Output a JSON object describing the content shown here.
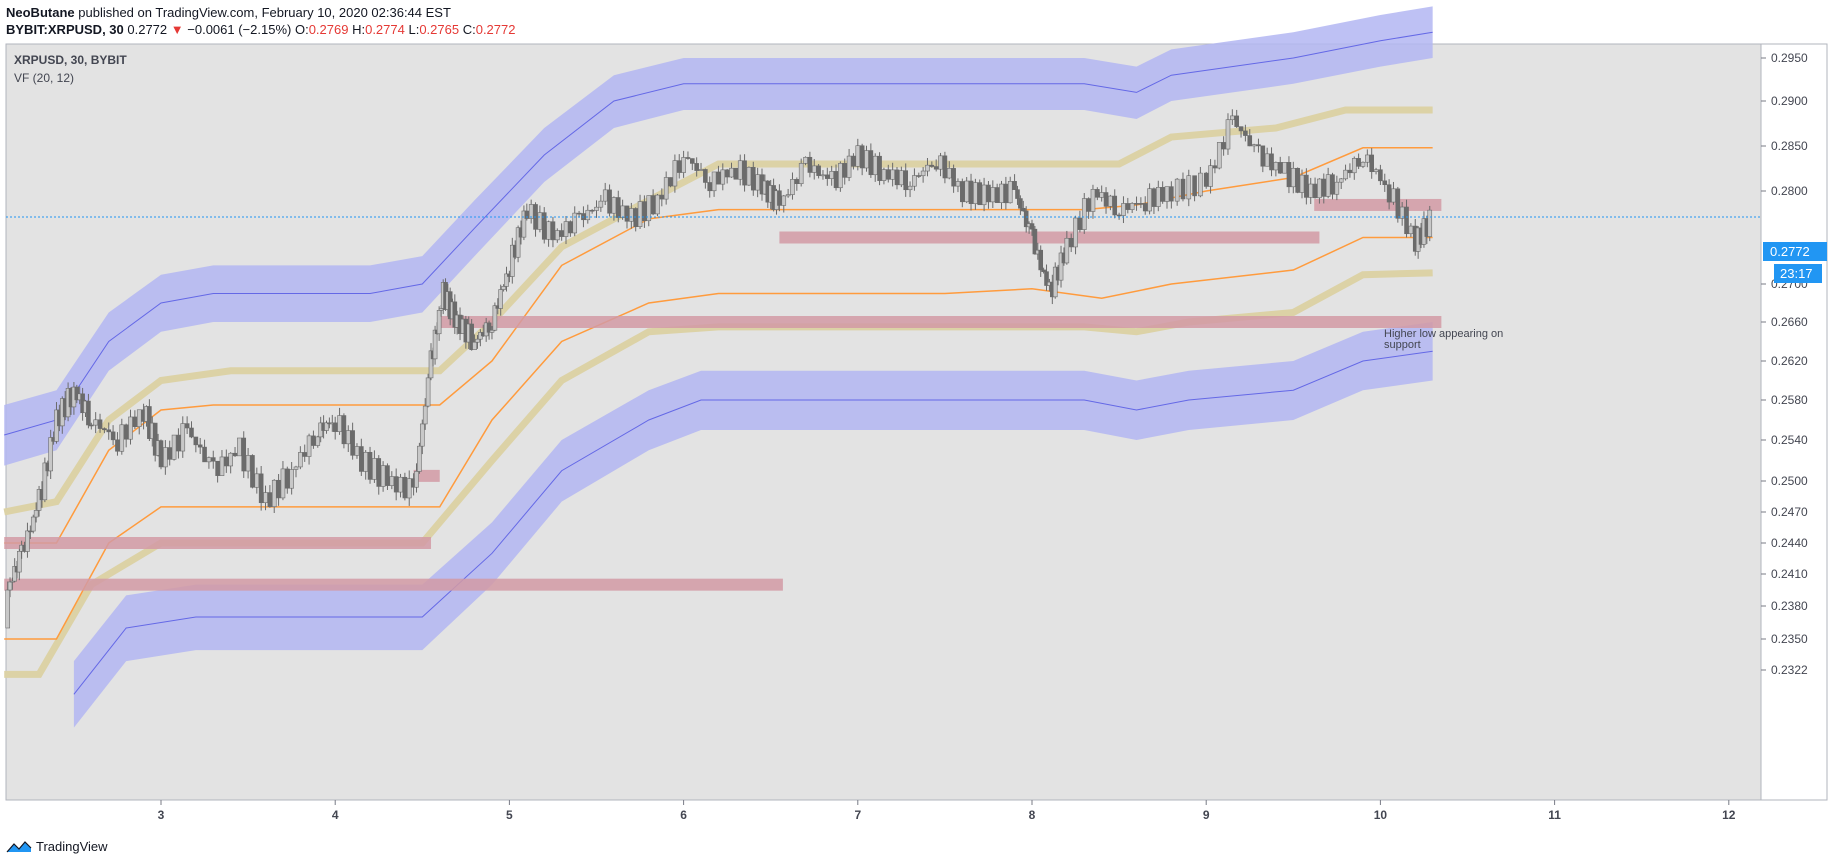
{
  "header": {
    "author": "NeoButane",
    "published": "published on TradingView.com, February 10, 2020 02:36:44 EST",
    "symbol": "BYBIT:XRPUSD, 30",
    "change_arrow": "▼",
    "change": "−0.0061 (−2.15%)",
    "open_label": "O:",
    "open": "0.2769",
    "high_label": "H:",
    "high": "0.2774",
    "low_label": "L:",
    "low": "0.2765",
    "close_label": "C:",
    "close": "0.2772"
  },
  "legend": {
    "symbol_line": "XRPUSD, 30, BYBIT",
    "indicator": "VF (20, 12)"
  },
  "price_axis": {
    "current_price": "0.2772",
    "countdown": "23:17"
  },
  "annotation": {
    "line1": "Higher low appearing on",
    "line2": "support"
  },
  "footer": {
    "brand": "TradingView"
  },
  "colors": {
    "background": "#e3e3e3",
    "up_candle": "#c8c8c8",
    "down_candle": "#6b6b6b",
    "wick": "#6b6b6b",
    "band_blue": "#b3b6f2",
    "band_line_blue": "#6468e6",
    "band_tan": "#dcd2a6",
    "orange": "#ff9b3d",
    "support_zone": "#d29aa5",
    "price_line": "#2196f3"
  },
  "chart_data": {
    "type": "candlestick",
    "x_label_ticks": [
      "3",
      "4",
      "5",
      "6",
      "7",
      "8",
      "9",
      "10",
      "11",
      "12"
    ],
    "y_ticks": [
      "0.2950",
      "0.2900",
      "0.2850",
      "0.2800",
      "0.2700",
      "0.2660",
      "0.2620",
      "0.2580",
      "0.2540",
      "0.2500",
      "0.2470",
      "0.2440",
      "0.2410",
      "0.2380",
      "0.2350",
      "0.2322"
    ],
    "y_scale": "log",
    "x_range_days": [
      2.1,
      12.2
    ],
    "y_range": [
      0.2305,
      0.2985
    ],
    "current_price": 0.2772,
    "candles_approx": [
      [
        2.12,
        0.236,
        0.2395
      ],
      [
        2.2,
        0.2395,
        0.243
      ],
      [
        2.3,
        0.242,
        0.248
      ],
      [
        2.4,
        0.247,
        0.256
      ],
      [
        2.5,
        0.255,
        0.259
      ],
      [
        2.6,
        0.258,
        0.256
      ],
      [
        2.75,
        0.256,
        0.254
      ],
      [
        2.9,
        0.254,
        0.257
      ],
      [
        3.0,
        0.256,
        0.252
      ],
      [
        3.15,
        0.252,
        0.255
      ],
      [
        3.3,
        0.254,
        0.251
      ],
      [
        3.45,
        0.251,
        0.253
      ],
      [
        3.6,
        0.252,
        0.248
      ],
      [
        3.75,
        0.248,
        0.251
      ],
      [
        3.9,
        0.251,
        0.255
      ],
      [
        4.0,
        0.255,
        0.256
      ],
      [
        4.15,
        0.255,
        0.252
      ],
      [
        4.3,
        0.252,
        0.25
      ],
      [
        4.45,
        0.25,
        0.249
      ],
      [
        4.55,
        0.25,
        0.262
      ],
      [
        4.62,
        0.262,
        0.269
      ],
      [
        4.7,
        0.268,
        0.266
      ],
      [
        4.8,
        0.266,
        0.264
      ],
      [
        4.9,
        0.264,
        0.266
      ],
      [
        5.0,
        0.266,
        0.272
      ],
      [
        5.1,
        0.272,
        0.278
      ],
      [
        5.25,
        0.277,
        0.275
      ],
      [
        5.4,
        0.274,
        0.277
      ],
      [
        5.55,
        0.276,
        0.279
      ],
      [
        5.7,
        0.278,
        0.277
      ],
      [
        5.85,
        0.276,
        0.279
      ],
      [
        6.0,
        0.279,
        0.284
      ],
      [
        6.15,
        0.283,
        0.281
      ],
      [
        6.3,
        0.281,
        0.2825
      ],
      [
        6.45,
        0.282,
        0.2805
      ],
      [
        6.55,
        0.28,
        0.2785
      ],
      [
        6.7,
        0.279,
        0.283
      ],
      [
        6.85,
        0.283,
        0.281
      ],
      [
        7.0,
        0.281,
        0.284
      ],
      [
        7.15,
        0.284,
        0.282
      ],
      [
        7.3,
        0.282,
        0.281
      ],
      [
        7.45,
        0.281,
        0.2835
      ],
      [
        7.6,
        0.282,
        0.28
      ],
      [
        7.75,
        0.28,
        0.2795
      ],
      [
        7.9,
        0.2795,
        0.28
      ],
      [
        8.0,
        0.279,
        0.275
      ],
      [
        8.1,
        0.274,
        0.269
      ],
      [
        8.2,
        0.27,
        0.274
      ],
      [
        8.35,
        0.275,
        0.28
      ],
      [
        8.5,
        0.279,
        0.278
      ],
      [
        8.65,
        0.278,
        0.279
      ],
      [
        8.8,
        0.279,
        0.28
      ],
      [
        9.0,
        0.28,
        0.281
      ],
      [
        9.15,
        0.281,
        0.288
      ],
      [
        9.3,
        0.288,
        0.284
      ],
      [
        9.45,
        0.284,
        0.282
      ],
      [
        9.6,
        0.282,
        0.28
      ],
      [
        9.75,
        0.28,
        0.281
      ],
      [
        9.9,
        0.281,
        0.284
      ],
      [
        10.05,
        0.283,
        0.28
      ],
      [
        10.2,
        0.279,
        0.2745
      ],
      [
        10.3,
        0.276,
        0.2772
      ]
    ]
  }
}
